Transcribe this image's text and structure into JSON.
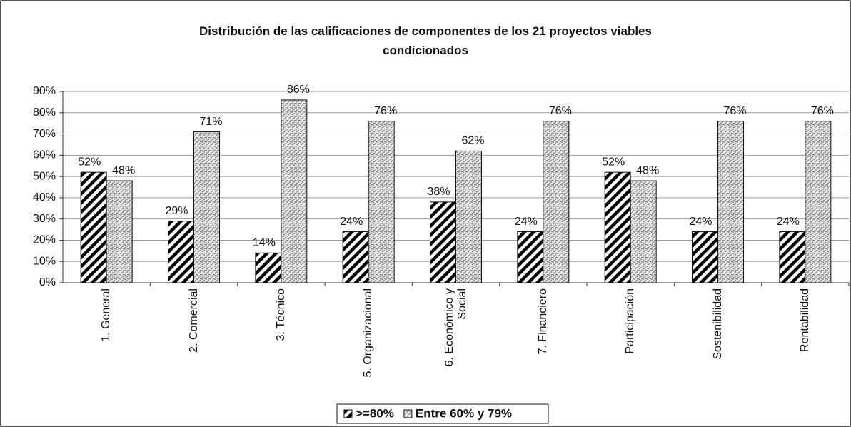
{
  "chart_data": {
    "type": "bar",
    "title": "Distribución de las calificaciones de componentes de los 21 proyectos viables condicionados",
    "categories": [
      "1. General",
      "2. Comercial",
      "3. Técnico",
      "5. Organizacional",
      "6. Económico y Social",
      "7. Financiero",
      "Participación",
      "Sostenibilidad",
      "Rentabilidad"
    ],
    "series": [
      {
        "name": ">=80%",
        "color": "#000000",
        "values": [
          52,
          29,
          14,
          24,
          38,
          24,
          52,
          24,
          24
        ],
        "value_labels": [
          "52%",
          "29%",
          "14%",
          "24%",
          "38%",
          "24%",
          "52%",
          "24%",
          "24%"
        ]
      },
      {
        "name": "Entre 60% y 79%",
        "color": "#6e6e6e",
        "values": [
          48,
          71,
          86,
          76,
          62,
          76,
          48,
          76,
          76
        ],
        "value_labels": [
          "48%",
          "71%",
          "86%",
          "76%",
          "62%",
          "76%",
          "48%",
          "76%",
          "76%"
        ]
      }
    ],
    "ylim": [
      0,
      90
    ],
    "yticks": [
      {
        "value": 0,
        "label": "0%"
      },
      {
        "value": 10,
        "label": "10%"
      },
      {
        "value": 20,
        "label": "20%"
      },
      {
        "value": 30,
        "label": "30%"
      },
      {
        "value": 40,
        "label": "40%"
      },
      {
        "value": 50,
        "label": "50%"
      },
      {
        "value": 60,
        "label": "60%"
      },
      {
        "value": 70,
        "label": "70%"
      },
      {
        "value": 80,
        "label": "80%"
      },
      {
        "value": 90,
        "label": "90%"
      }
    ],
    "grid": true,
    "legend": "bottom"
  }
}
